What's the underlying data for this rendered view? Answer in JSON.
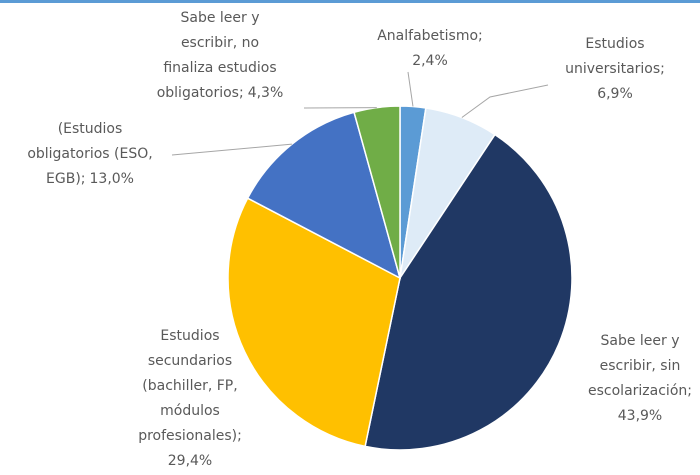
{
  "chart_data": {
    "type": "pie",
    "categories": [
      "Analfabetismo;",
      "Estudios universitarios;",
      "Sabe leer y escribir, sin escolarización;",
      "Estudios secundarios (bachiller, FP, módulos profesionales);",
      "(Estudios obligatorios (ESO, EGB);",
      "Sabe leer y escribir, no finaliza estudios obligatorios;"
    ],
    "values": [
      2.4,
      6.9,
      43.9,
      29.4,
      13.0,
      4.3
    ],
    "value_labels": [
      "2,4%",
      "6,9%",
      "43,9%",
      "29,4%",
      "13,0%",
      "4,3%"
    ],
    "colors": [
      "#5b9bd5",
      "#deebf7",
      "#203864",
      "#ffc000",
      "#4472c4",
      "#70ad47"
    ]
  }
}
